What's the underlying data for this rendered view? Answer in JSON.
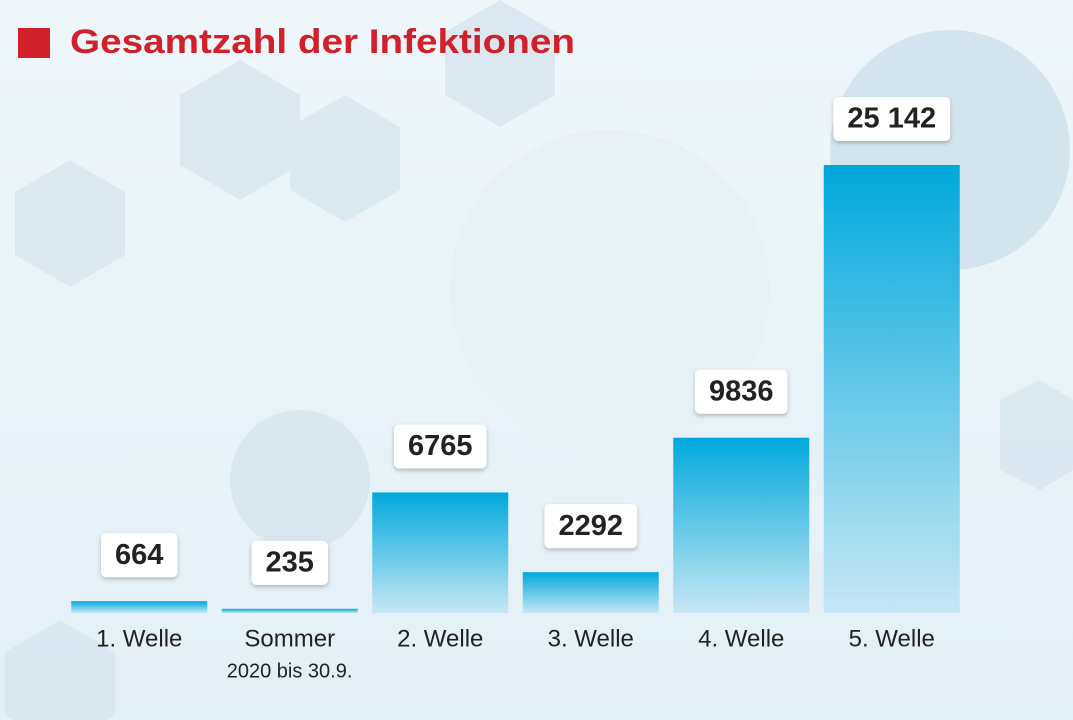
{
  "chart_data": {
    "type": "bar",
    "title": "Gesamtzahl der Infektionen",
    "categories": [
      "1. Welle",
      "Sommer",
      "2. Welle",
      "3. Welle",
      "4. Welle",
      "5. Welle"
    ],
    "annotation": "2020 bis 30.9.",
    "values": [
      664,
      235,
      6765,
      2292,
      9836,
      25142
    ],
    "value_labels": [
      "664",
      "235",
      "6765",
      "2292",
      "9836",
      "25 142"
    ],
    "color": "#00a8dc",
    "title_color": "#d0202a"
  }
}
